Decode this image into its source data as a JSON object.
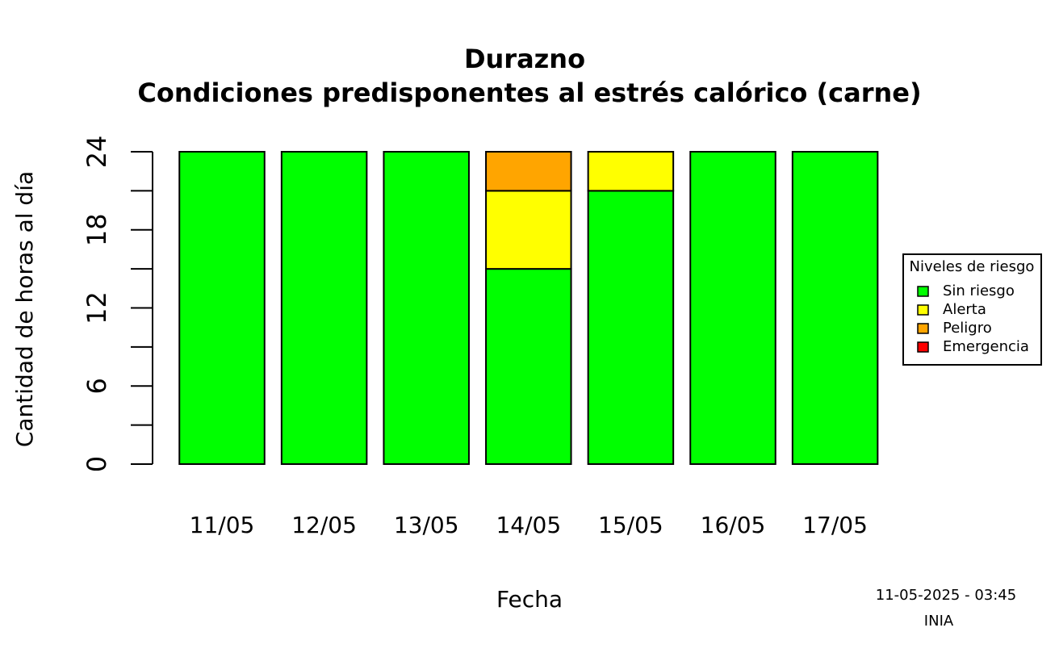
{
  "chart_data": {
    "type": "stacked_bar",
    "title": "Durazno",
    "subtitle": "Condiciones predisponentes al estrés calórico (carne)",
    "x_label": "Fecha",
    "y_label": "Cantidad de horas al día",
    "categories": [
      "11/05",
      "12/05",
      "13/05",
      "14/05",
      "15/05",
      "16/05",
      "17/05"
    ],
    "series": [
      {
        "name": "Sin riesgo",
        "color": "#00ff00",
        "values": [
          24,
          24,
          24,
          15,
          21,
          24,
          24
        ]
      },
      {
        "name": "Alerta",
        "color": "#ffff00",
        "values": [
          0,
          0,
          0,
          6,
          3,
          0,
          0
        ]
      },
      {
        "name": "Peligro",
        "color": "#ffa500",
        "values": [
          0,
          0,
          0,
          3,
          0,
          0,
          0
        ]
      },
      {
        "name": "Emergencia",
        "color": "#ff0000",
        "values": [
          0,
          0,
          0,
          0,
          0,
          0,
          0
        ]
      }
    ],
    "ylim": [
      0,
      24
    ],
    "yticks": [
      0,
      6,
      12,
      18,
      24
    ],
    "minor_yticks": [
      3,
      9,
      15,
      21
    ],
    "legend_title": "Niveles de riesgo",
    "legend_position": "right",
    "footer": [
      "11-05-2025 - 03:45",
      "INIA"
    ]
  }
}
